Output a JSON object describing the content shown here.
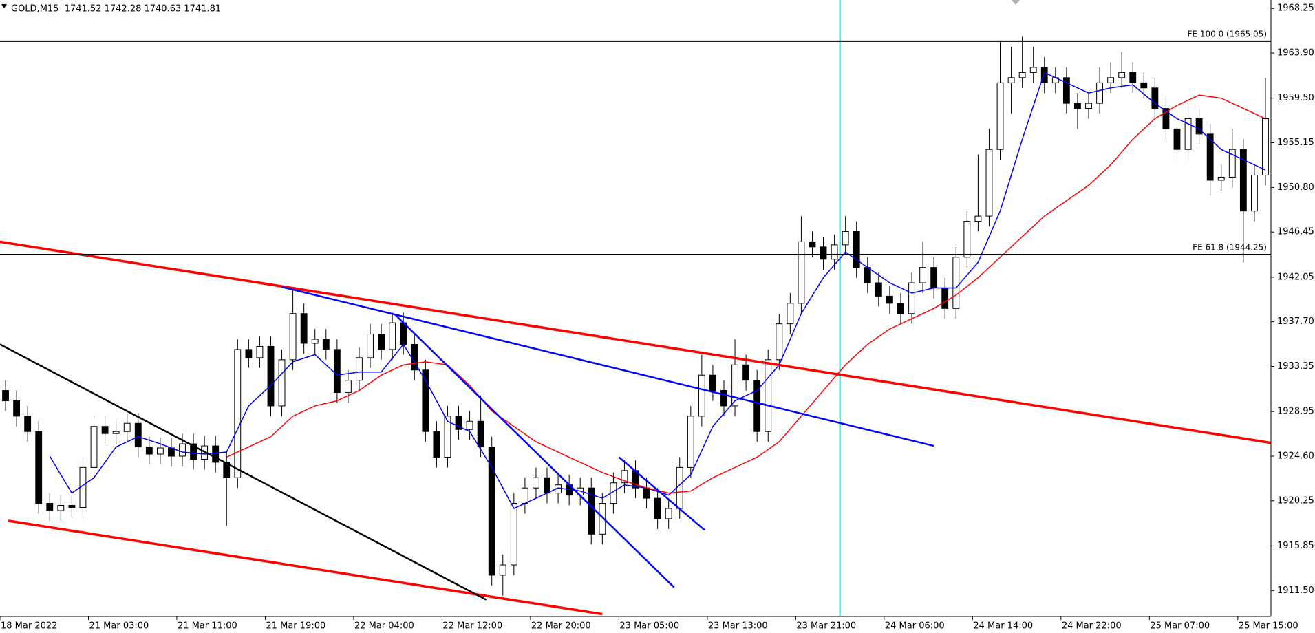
{
  "chart_data": {
    "type": "candlestick",
    "title": "GOLD,M15  1741.52 1742.28 1740.63 1741.81",
    "xlim": [
      0,
      460
    ],
    "ylim": [
      1908.97,
      1969.07
    ],
    "xticks": [
      {
        "value": 0,
        "label": "18 Mar 2022"
      },
      {
        "value": 32,
        "label": "21 Mar 03:00"
      },
      {
        "value": 64,
        "label": "21 Mar 11:00"
      },
      {
        "value": 96,
        "label": "21 Mar 19:00"
      },
      {
        "value": 128,
        "label": "22 Mar 04:00"
      },
      {
        "value": 160,
        "label": "22 Mar 12:00"
      },
      {
        "value": 192,
        "label": "22 Mar 20:00"
      },
      {
        "value": 224,
        "label": "23 Mar 05:00"
      },
      {
        "value": 256,
        "label": "23 Mar 13:00"
      },
      {
        "value": 288,
        "label": "23 Mar 21:00"
      },
      {
        "value": 320,
        "label": "24 Mar 06:00"
      },
      {
        "value": 352,
        "label": "24 Mar 14:00"
      },
      {
        "value": 384,
        "label": "24 Mar 22:00"
      },
      {
        "value": 416,
        "label": "25 Mar 07:00"
      },
      {
        "value": 448,
        "label": "25 Mar 15:00"
      }
    ],
    "yticks": [
      1968.25,
      {
        "value": 1963.9,
        "label": "1963.90"
      },
      {
        "value": 1959.5,
        "label": "1959.50"
      },
      1955.15,
      {
        "value": 1950.8,
        "label": "1950.80"
      },
      1946.45,
      1942.05,
      {
        "value": 1937.7,
        "label": "1937.70"
      },
      1933.35,
      1928.95,
      {
        "value": 1924.6,
        "label": "1924.60"
      },
      1920.25,
      1915.85,
      {
        "value": 1911.5,
        "label": "1911.50"
      }
    ],
    "x": [
      2,
      6,
      10,
      14,
      18,
      22,
      26,
      30,
      34,
      38,
      42,
      46,
      50,
      54,
      58,
      62,
      66,
      70,
      74,
      78,
      82,
      86,
      90,
      94,
      98,
      102,
      106,
      110,
      114,
      118,
      122,
      126,
      130,
      134,
      138,
      142,
      146,
      150,
      154,
      158,
      162,
      166,
      170,
      174,
      178,
      182,
      186,
      190,
      194,
      198,
      202,
      206,
      210,
      214,
      218,
      222,
      226,
      230,
      234,
      238,
      242,
      246,
      250,
      254,
      258,
      262,
      266,
      270,
      274,
      278,
      282,
      286,
      290,
      294,
      298,
      302,
      306,
      310,
      314,
      318,
      322,
      326,
      330,
      334,
      338,
      342,
      346,
      350,
      354,
      358,
      362,
      366,
      370,
      374,
      378,
      382,
      386,
      390,
      394,
      398,
      402,
      406,
      410,
      414,
      418,
      422,
      426,
      430,
      434,
      438,
      442,
      446,
      450,
      454,
      458
    ],
    "open": [
      1931.0,
      1930.0,
      1928.5,
      1927.0,
      1920.0,
      1919.3,
      1919.8,
      1919.6,
      1923.5,
      1927.5,
      1926.8,
      1927.0,
      1927.8,
      1925.5,
      1924.8,
      1925.4,
      1924.6,
      1925.8,
      1924.3,
      1925.6,
      1924.0,
      1922.5,
      1935.0,
      1934.2,
      1935.3,
      1929.5,
      1934.0,
      1938.5,
      1935.6,
      1936.0,
      1935.0,
      1930.8,
      1932.0,
      1934.2,
      1936.5,
      1935.0,
      1937.6,
      1935.5,
      1933.0,
      1927.0,
      1924.5,
      1928.5,
      1927.2,
      1928.0,
      1925.5,
      1913.0,
      1914.0,
      1920.0,
      1921.5,
      1922.5,
      1921.0,
      1921.8,
      1920.8,
      1921.5,
      1917.0,
      1920.0,
      1922.0,
      1923.2,
      1921.5,
      1920.5,
      1918.5,
      1919.5,
      1923.5,
      1928.5,
      1932.5,
      1931.0,
      1929.5,
      1933.5,
      1932.0,
      1927.0,
      1934.0,
      1937.5,
      1939.5,
      1945.5,
      1945.0,
      1943.8,
      1945.2,
      1946.5,
      1943.0,
      1941.5,
      1940.2,
      1939.5,
      1938.5,
      1941.5,
      1943.0,
      1941.0,
      1939.0,
      1944.0,
      1947.5,
      1948.0,
      1954.5,
      1961.0,
      1961.5,
      1962.0,
      1962.5,
      1961.0,
      1961.5,
      1959.0,
      1958.5,
      1959.0,
      1961.0,
      1961.5,
      1962.0,
      1961.0,
      1960.5,
      1958.5,
      1956.5,
      1954.5,
      1957.5,
      1956.0,
      1951.5,
      1951.8,
      1954.5,
      1948.5,
      1952.0
    ],
    "high": [
      1932.0,
      1931.0,
      1929.5,
      1928.0,
      1921.0,
      1920.8,
      1920.8,
      1924.5,
      1928.5,
      1928.5,
      1928.0,
      1928.8,
      1928.8,
      1926.5,
      1926.4,
      1926.4,
      1926.8,
      1926.8,
      1926.6,
      1926.6,
      1925.0,
      1936.0,
      1936.0,
      1936.3,
      1936.3,
      1935.0,
      1940.8,
      1939.5,
      1937.0,
      1937.0,
      1936.0,
      1933.0,
      1935.2,
      1937.5,
      1937.5,
      1938.6,
      1938.6,
      1936.5,
      1934.0,
      1928.0,
      1929.5,
      1929.5,
      1929.0,
      1930.5,
      1926.5,
      1915.0,
      1921.0,
      1922.5,
      1923.5,
      1923.5,
      1922.8,
      1922.8,
      1922.5,
      1922.5,
      1921.0,
      1923.0,
      1924.2,
      1924.2,
      1922.5,
      1921.5,
      1920.5,
      1924.5,
      1929.5,
      1934.5,
      1933.5,
      1932.0,
      1936.0,
      1934.5,
      1933.0,
      1935.0,
      1938.5,
      1940.5,
      1948.0,
      1946.5,
      1946.0,
      1946.2,
      1948.0,
      1947.5,
      1944.0,
      1942.5,
      1941.2,
      1940.5,
      1942.5,
      1945.5,
      1944.0,
      1942.0,
      1945.0,
      1948.5,
      1954.0,
      1956.5,
      1965.0,
      1964.5,
      1965.5,
      1964.5,
      1963.5,
      1962.5,
      1962.5,
      1960.0,
      1960.0,
      1962.5,
      1963.0,
      1964.0,
      1963.0,
      1962.0,
      1961.5,
      1959.5,
      1957.5,
      1959.0,
      1958.5,
      1957.0,
      1953.0,
      1956.5,
      1955.5,
      1953.0,
      1961.5
    ],
    "low": [
      1929.0,
      1927.5,
      1926.0,
      1919.0,
      1918.3,
      1918.3,
      1918.6,
      1918.6,
      1922.5,
      1925.8,
      1925.8,
      1926.0,
      1924.5,
      1923.8,
      1923.8,
      1923.6,
      1923.6,
      1923.3,
      1923.3,
      1923.0,
      1917.8,
      1921.5,
      1933.2,
      1933.2,
      1928.5,
      1928.5,
      1933.0,
      1934.6,
      1934.6,
      1934.0,
      1929.8,
      1929.8,
      1931.0,
      1933.2,
      1934.0,
      1934.0,
      1934.5,
      1932.0,
      1926.0,
      1923.5,
      1923.5,
      1926.2,
      1926.2,
      1924.5,
      1912.0,
      1911.0,
      1913.0,
      1919.0,
      1920.5,
      1920.0,
      1920.0,
      1919.8,
      1919.8,
      1916.0,
      1916.0,
      1919.0,
      1921.0,
      1920.5,
      1919.5,
      1917.5,
      1917.5,
      1918.5,
      1922.5,
      1927.5,
      1930.0,
      1928.5,
      1928.5,
      1931.0,
      1926.0,
      1926.0,
      1933.0,
      1936.5,
      1938.5,
      1944.0,
      1942.8,
      1942.8,
      1944.2,
      1942.0,
      1940.5,
      1939.2,
      1938.5,
      1937.5,
      1937.5,
      1940.5,
      1940.0,
      1938.0,
      1938.0,
      1943.0,
      1946.5,
      1947.0,
      1953.5,
      1958.0,
      1960.5,
      1961.0,
      1960.0,
      1960.0,
      1958.0,
      1956.5,
      1957.5,
      1958.0,
      1960.0,
      1960.5,
      1960.0,
      1959.5,
      1957.5,
      1955.5,
      1953.5,
      1953.5,
      1955.0,
      1950.0,
      1950.5,
      1950.8,
      1943.5,
      1947.5,
      1951.0
    ],
    "close": [
      1930.0,
      1928.5,
      1927.0,
      1920.0,
      1919.3,
      1919.8,
      1919.6,
      1923.5,
      1927.5,
      1926.8,
      1927.0,
      1927.8,
      1925.5,
      1924.8,
      1925.4,
      1924.6,
      1925.8,
      1924.3,
      1925.6,
      1924.0,
      1922.5,
      1935.0,
      1934.2,
      1935.3,
      1929.5,
      1934.0,
      1938.5,
      1935.6,
      1936.0,
      1935.0,
      1930.8,
      1932.0,
      1934.2,
      1936.5,
      1935.0,
      1937.6,
      1935.5,
      1933.0,
      1927.0,
      1924.5,
      1928.5,
      1927.2,
      1928.0,
      1925.5,
      1913.0,
      1914.0,
      1920.0,
      1921.5,
      1922.5,
      1921.0,
      1921.8,
      1920.8,
      1921.5,
      1917.0,
      1920.0,
      1922.0,
      1923.2,
      1921.5,
      1920.5,
      1918.5,
      1919.5,
      1923.5,
      1928.5,
      1932.5,
      1931.0,
      1929.5,
      1933.5,
      1932.0,
      1927.0,
      1934.0,
      1937.5,
      1939.5,
      1945.5,
      1945.0,
      1943.8,
      1945.2,
      1946.5,
      1943.0,
      1941.5,
      1940.2,
      1939.5,
      1938.5,
      1941.5,
      1943.0,
      1941.0,
      1939.0,
      1944.0,
      1947.5,
      1948.0,
      1954.5,
      1961.0,
      1961.5,
      1962.0,
      1962.5,
      1961.0,
      1961.5,
      1959.0,
      1958.5,
      1959.0,
      1961.0,
      1961.5,
      1962.0,
      1961.0,
      1960.5,
      1958.5,
      1956.5,
      1954.5,
      1957.5,
      1956.0,
      1951.5,
      1951.8,
      1954.5,
      1948.5,
      1952.0,
      1957.5
    ],
    "series": [
      {
        "color": "#0000ff",
        "x": [
          2,
          10,
          18,
          26,
          34,
          42,
          50,
          58,
          66,
          74,
          82,
          90,
          98,
          106,
          114,
          122,
          130,
          138,
          146,
          154,
          162,
          170,
          178,
          186,
          194,
          202,
          210,
          218,
          226,
          234,
          242,
          250,
          258,
          266,
          274,
          282,
          290,
          298,
          306,
          314,
          322,
          330,
          338,
          346,
          354,
          362,
          370,
          378,
          386,
          394,
          402,
          410,
          418,
          426,
          434,
          442,
          450,
          458
        ],
        "values": [
          null,
          null,
          1924.6,
          1921.0,
          1922.5,
          1925.5,
          1926.5,
          1925.8,
          1925.0,
          1924.8,
          1925.0,
          1929.5,
          1931.5,
          1933.8,
          1934.5,
          1932.5,
          1932.8,
          1932.8,
          1935.5,
          1932.0,
          1928.0,
          1927.0,
          1923.5,
          1919.5,
          1920.5,
          1921.5,
          1921.2,
          1920.5,
          1921.8,
          1921.5,
          1920.8,
          1922.8,
          1927.5,
          1930.0,
          1931.0,
          1933.5,
          1938.5,
          1942.0,
          1944.5,
          1943.0,
          1941.5,
          1940.5,
          1941.0,
          1941.0,
          1943.5,
          1948.5,
          1955.5,
          1962.0,
          1961.0,
          1960.0,
          1960.5,
          1960.8,
          1959.0,
          1957.5,
          1956.5,
          1954.5,
          1953.5,
          1952.5
        ]
      },
      {
        "color": "#ff0000",
        "x": [
          2,
          10,
          18,
          26,
          34,
          42,
          50,
          58,
          66,
          74,
          82,
          90,
          98,
          106,
          114,
          122,
          130,
          138,
          146,
          154,
          162,
          170,
          178,
          186,
          194,
          202,
          210,
          218,
          226,
          234,
          242,
          250,
          258,
          266,
          274,
          282,
          290,
          298,
          306,
          314,
          322,
          330,
          338,
          346,
          354,
          362,
          370,
          378,
          386,
          394,
          402,
          410,
          418,
          426,
          434,
          442,
          450,
          458
        ],
        "values": [
          null,
          null,
          null,
          null,
          null,
          null,
          null,
          null,
          null,
          null,
          1924.5,
          1925.5,
          1926.5,
          1928.5,
          1929.5,
          1930.0,
          1931.0,
          1932.5,
          1933.5,
          1933.8,
          1933.5,
          1931.5,
          1929.0,
          1927.5,
          1926.0,
          1925.0,
          1924.0,
          1923.0,
          1922.2,
          1921.5,
          1921.0,
          1921.2,
          1922.5,
          1923.5,
          1924.5,
          1926.0,
          1928.5,
          1931.0,
          1933.5,
          1935.5,
          1937.0,
          1938.0,
          1939.0,
          1940.3,
          1942.0,
          1944.0,
          1946.0,
          1948.0,
          1949.5,
          1951.0,
          1953.0,
          1955.5,
          1957.5,
          1958.8,
          1959.8,
          1959.5,
          1958.5,
          1957.5
        ]
      }
    ],
    "trendlines": [
      {
        "color": "#ff0000",
        "x": [
          0,
          460
        ],
        "values": [
          1945.5,
          1925.9
        ]
      },
      {
        "color": "#ff0000",
        "x": [
          3,
          218
        ],
        "values": [
          1918.3,
          1909.2
        ]
      },
      {
        "color": "#000000",
        "x": [
          0,
          176
        ],
        "values": [
          1935.5,
          1910.6
        ]
      },
      {
        "color": "#0000ff",
        "x": [
          102,
          338
        ],
        "values": [
          1941.1,
          1925.6
        ]
      },
      {
        "color": "#0000ff",
        "x": [
          143,
          244
        ],
        "values": [
          1938.4,
          1911.8
        ]
      },
      {
        "color": "#0000ff",
        "x": [
          224,
          255
        ],
        "values": [
          1924.5,
          1917.4
        ]
      }
    ],
    "hlines": [
      {
        "value": 1965.05,
        "label": "FE 100.0 (1965.05)",
        "color": "#000000"
      },
      {
        "value": 1944.25,
        "label": "FE 61.8 (1944.25)",
        "color": "#000000"
      }
    ],
    "vlines": [
      {
        "x": 304,
        "color": "#3cc8dc"
      }
    ]
  }
}
